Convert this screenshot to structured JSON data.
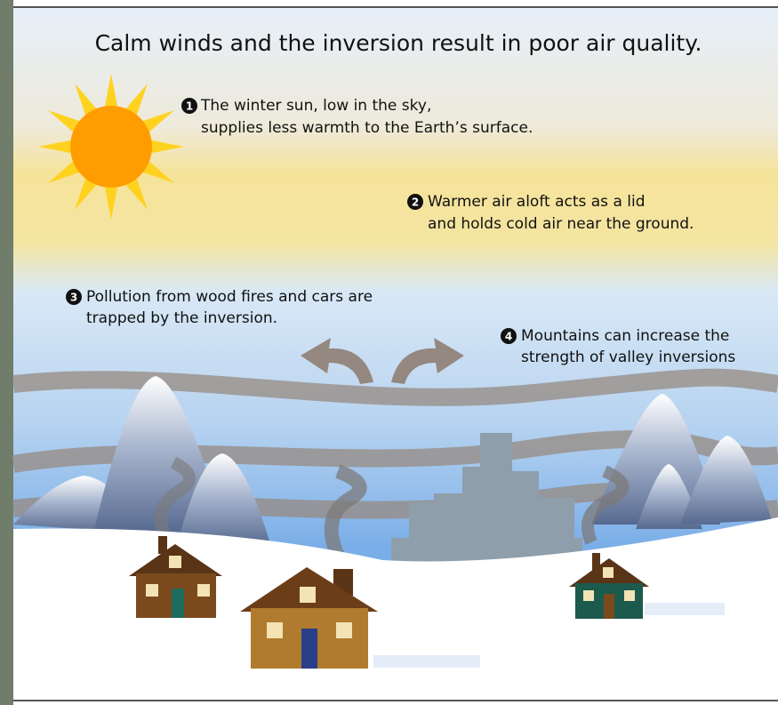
{
  "title": "Calm winds and the inversion result in poor air quality.",
  "callouts": [
    {
      "marker": "1",
      "lines": [
        "The winter sun, low in the sky,",
        "supplies less warmth to the Earth’s surface."
      ]
    },
    {
      "marker": "2",
      "lines": [
        "Warmer air aloft acts as a lid",
        "and holds cold air near the ground."
      ]
    },
    {
      "marker": "3",
      "lines": [
        "Pollution from wood fires and cars are",
        "trapped by the inversion."
      ]
    },
    {
      "marker": "4",
      "lines": [
        "Mountains can increase the",
        "strength of valley inversions"
      ]
    }
  ]
}
